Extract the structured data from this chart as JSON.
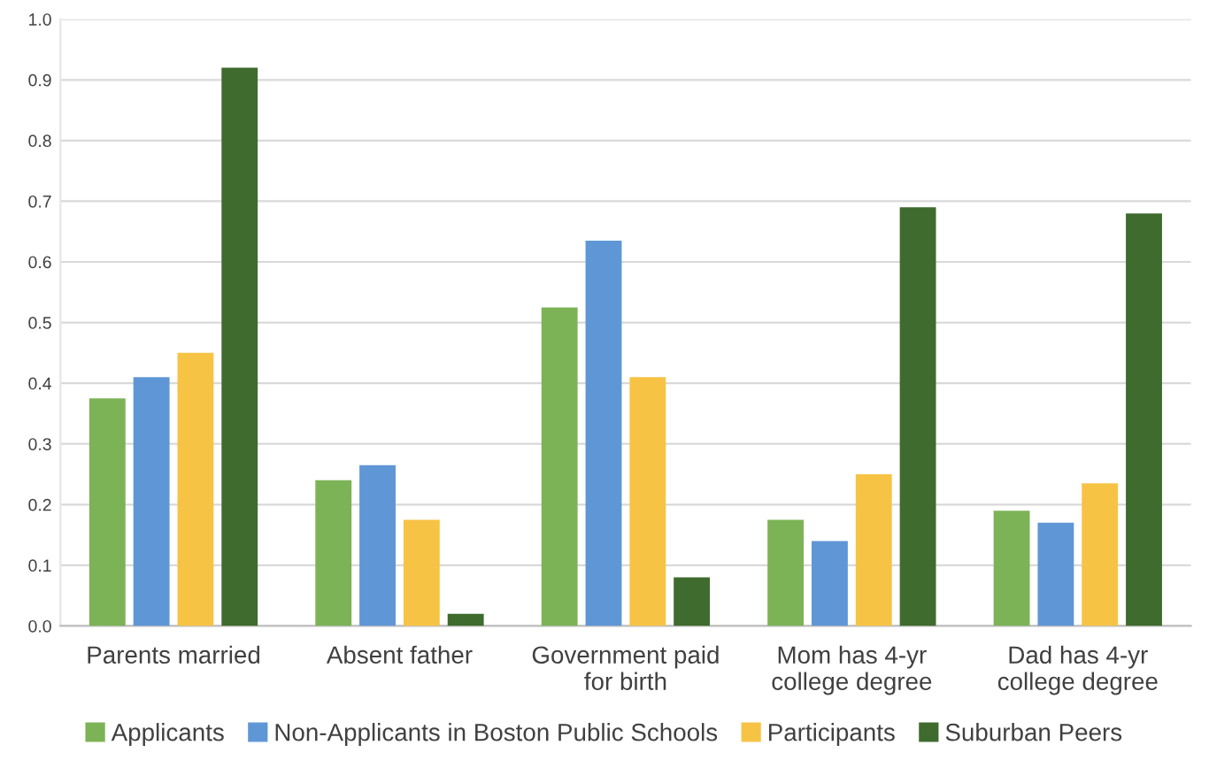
{
  "chart_data": {
    "type": "bar",
    "categories": [
      "Parents married",
      "Absent father",
      "Government paid\nfor birth",
      "Mom has 4-yr\ncollege degree",
      "Dad has 4-yr\ncollege degree"
    ],
    "series": [
      {
        "name": "Applicants",
        "color": "#7cb356",
        "values": [
          0.375,
          0.24,
          0.525,
          0.175,
          0.19
        ]
      },
      {
        "name": "Non-Applicants in Boston Public Schools",
        "color": "#5f97d6",
        "values": [
          0.41,
          0.265,
          0.635,
          0.14,
          0.17
        ]
      },
      {
        "name": "Participants",
        "color": "#f7c345",
        "values": [
          0.45,
          0.175,
          0.41,
          0.25,
          0.235
        ]
      },
      {
        "name": "Suburban Peers",
        "color": "#3f6b2e",
        "values": [
          0.92,
          0.02,
          0.08,
          0.69,
          0.68
        ]
      }
    ],
    "ylim": [
      0,
      1.0
    ],
    "yticks": [
      {
        "value": 0,
        "label": "0.0"
      },
      {
        "value": 0.1,
        "label": "0.1"
      },
      {
        "value": 0.2,
        "label": "0.2"
      },
      {
        "value": 0.3,
        "label": "0.3"
      },
      {
        "value": 0.4,
        "label": "0.4"
      },
      {
        "value": 0.5,
        "label": "0.5"
      },
      {
        "value": 0.6,
        "label": "0.6"
      },
      {
        "value": 0.7,
        "label": "0.7"
      },
      {
        "value": 0.8,
        "label": "0.8"
      },
      {
        "value": 0.9,
        "label": "0.9"
      },
      {
        "value": 1.0,
        "label": "1.0"
      }
    ],
    "grid": "y",
    "legend": "bottom"
  }
}
